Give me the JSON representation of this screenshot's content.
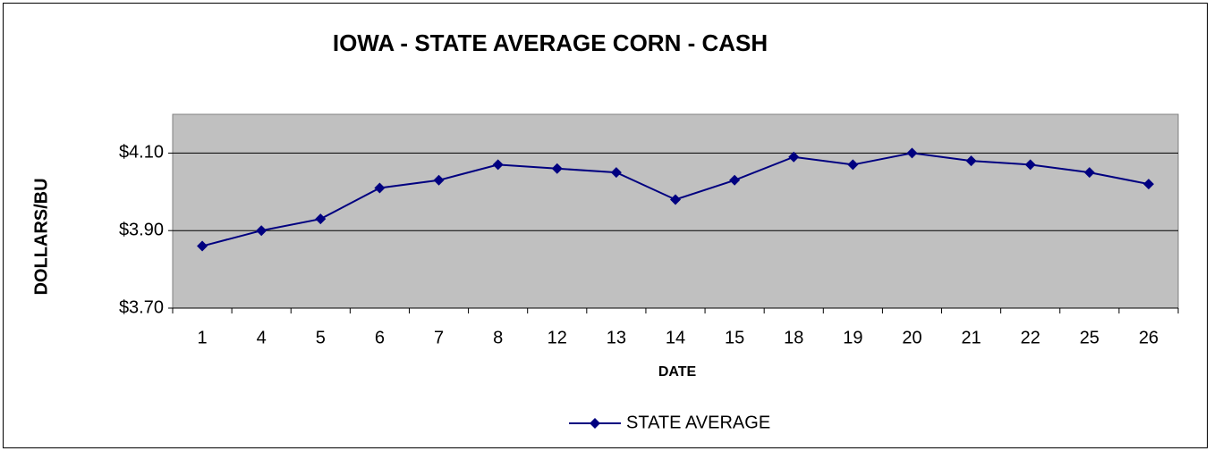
{
  "chart_data": {
    "type": "line",
    "title": "IOWA - STATE AVERAGE CORN - CASH",
    "x_label": "DATE",
    "y_label": "DOLLARS/BU",
    "categories": [
      "1",
      "4",
      "5",
      "6",
      "7",
      "8",
      "12",
      "13",
      "14",
      "15",
      "18",
      "19",
      "20",
      "21",
      "22",
      "25",
      "26"
    ],
    "series": [
      {
        "name": "STATE AVERAGE",
        "color": "#000080",
        "values": [
          3.86,
          3.9,
          3.93,
          4.01,
          4.03,
          4.07,
          4.06,
          4.05,
          3.98,
          4.03,
          4.09,
          4.07,
          4.1,
          4.08,
          4.07,
          4.05,
          4.02
        ]
      }
    ],
    "ylim": [
      3.7,
      4.2
    ],
    "yticks": [
      {
        "value": 3.7,
        "label": "$3.70"
      },
      {
        "value": 3.9,
        "label": "$3.90"
      },
      {
        "value": 4.1,
        "label": "$4.10"
      }
    ],
    "grid": true,
    "legend": "bottom"
  }
}
